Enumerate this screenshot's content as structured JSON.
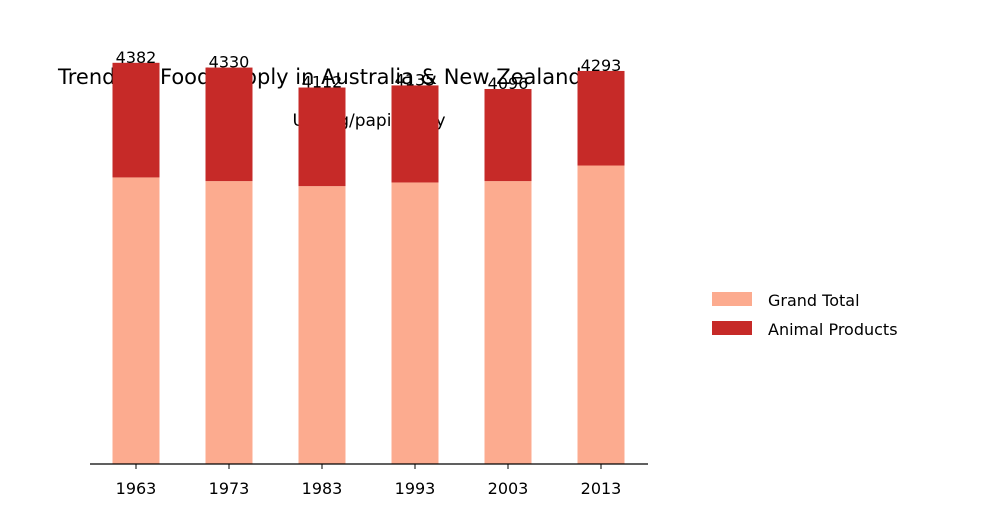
{
  "chart_data": {
    "type": "bar",
    "stacked": true,
    "title": "Trends of Food Supply in Australia & New Zealand",
    "subtitle": "Unit: g/papita/day",
    "xlabel": "",
    "ylabel": "",
    "categories": [
      "1963",
      "1973",
      "1983",
      "1993",
      "2003",
      "2013"
    ],
    "series": [
      {
        "name": "Grand Total",
        "color": "#fcab8f",
        "values": [
          3130,
          3090,
          3035,
          3075,
          3090,
          3260
        ]
      },
      {
        "name": "Animal Products",
        "color": "#c62a28",
        "values": [
          1252,
          1240,
          1077,
          1060,
          1006,
          1033
        ]
      }
    ],
    "totals": [
      4382,
      4330,
      4112,
      4135,
      4096,
      4293
    ],
    "ylim": [
      0,
      4500
    ],
    "y_axis_visible": false,
    "grid": false,
    "legend_position": "right"
  }
}
